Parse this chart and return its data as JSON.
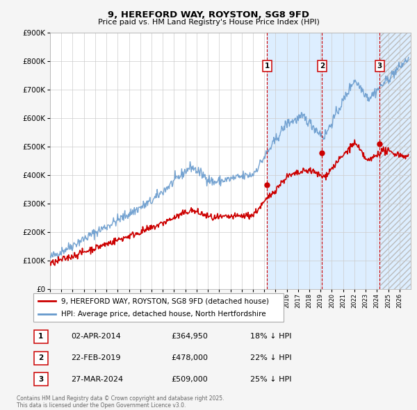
{
  "title": "9, HEREFORD WAY, ROYSTON, SG8 9FD",
  "subtitle": "Price paid vs. HM Land Registry's House Price Index (HPI)",
  "xmin": 1995,
  "xmax": 2027,
  "ymin": 0,
  "ymax": 900000,
  "yticks": [
    0,
    100000,
    200000,
    300000,
    400000,
    500000,
    600000,
    700000,
    800000,
    900000
  ],
  "sale_dates_num": [
    2014.25,
    2019.13,
    2024.23
  ],
  "sale_prices": [
    364950,
    478000,
    509000
  ],
  "sale_labels": [
    "1",
    "2",
    "3"
  ],
  "vline_color": "#cc0000",
  "sale_color": "#cc0000",
  "hpi_color": "#6699cc",
  "shade_color": "#ddeeff",
  "hatch_color": "#cccccc",
  "legend_red_label": "9, HEREFORD WAY, ROYSTON, SG8 9FD (detached house)",
  "legend_blue_label": "HPI: Average price, detached house, North Hertfordshire",
  "table_rows": [
    {
      "num": "1",
      "date": "02-APR-2014",
      "price": "£364,950",
      "hpi": "18% ↓ HPI"
    },
    {
      "num": "2",
      "date": "22-FEB-2019",
      "price": "£478,000",
      "hpi": "22% ↓ HPI"
    },
    {
      "num": "3",
      "date": "27-MAR-2024",
      "price": "£509,000",
      "hpi": "25% ↓ HPI"
    }
  ],
  "footnote": "Contains HM Land Registry data © Crown copyright and database right 2025.\nThis data is licensed under the Open Government Licence v3.0.",
  "background_color": "#f5f5f5",
  "plot_bg_color": "#ffffff",
  "grid_color": "#cccccc"
}
